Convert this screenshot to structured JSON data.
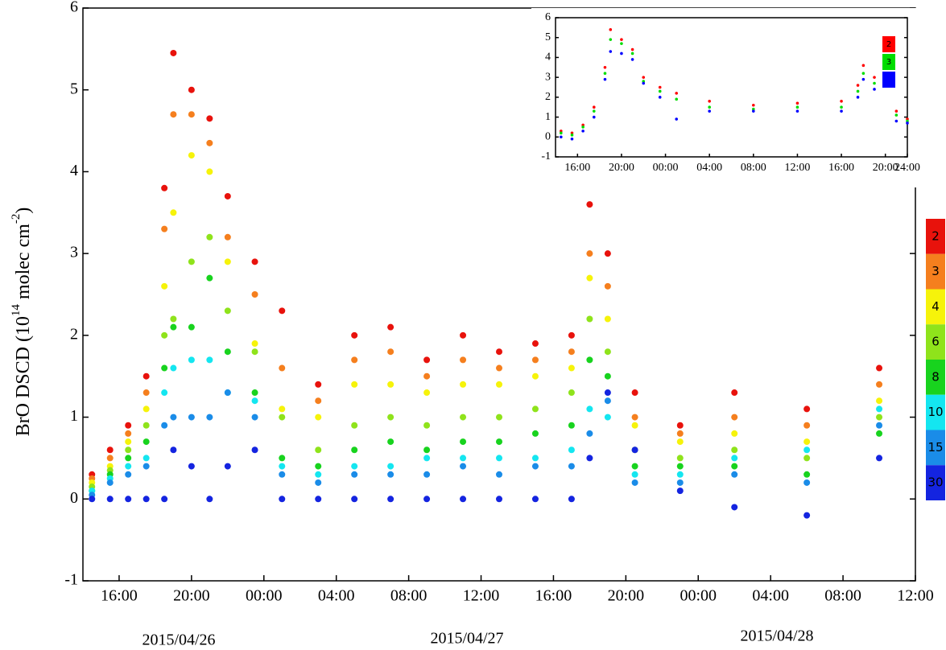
{
  "chart_data": [
    {
      "type": "scatter",
      "y_label": {
        "text": "BrO DSCD (10",
        "exp": "14",
        "unit": "molec cm",
        "unit_exp": "-2",
        "close": ")"
      },
      "date_labels": [
        "2015/04/26",
        "2015/04/27",
        "2015/04/28"
      ],
      "xlim": [
        14,
        60
      ],
      "xticks": [
        {
          "value": 16,
          "label": "16:00"
        },
        {
          "value": 20,
          "label": "20:00"
        },
        {
          "value": 24,
          "label": "00:00"
        },
        {
          "value": 28,
          "label": "04:00"
        },
        {
          "value": 32,
          "label": "08:00"
        },
        {
          "value": 36,
          "label": "12:00"
        },
        {
          "value": 40,
          "label": "16:00"
        },
        {
          "value": 44,
          "label": "20:00"
        },
        {
          "value": 48,
          "label": "00:00"
        },
        {
          "value": 52,
          "label": "04:00"
        },
        {
          "value": 56,
          "label": "08:00"
        },
        {
          "value": 60,
          "label": "12:00"
        }
      ],
      "ylim": [
        -1,
        6
      ],
      "yticks": [
        -1,
        0,
        1,
        2,
        3,
        4,
        5,
        6
      ],
      "x": [
        14.5,
        15.5,
        16.5,
        17.5,
        18.5,
        19,
        20,
        21,
        22,
        23.5,
        25,
        27,
        29,
        31,
        33,
        35,
        37,
        39,
        41,
        42,
        43,
        44.5,
        47,
        50,
        54,
        58
      ],
      "series": [
        {
          "name": "2",
          "color": "#e8120c",
          "values": [
            0.3,
            0.6,
            0.9,
            1.5,
            3.8,
            5.45,
            5.0,
            4.65,
            3.7,
            2.9,
            2.3,
            1.4,
            2.0,
            2.1,
            1.7,
            2.0,
            1.8,
            1.9,
            2.0,
            3.6,
            3.0,
            1.3,
            0.9,
            1.3,
            1.1,
            1.6
          ]
        },
        {
          "name": "3",
          "color": "#f57f1e",
          "values": [
            0.25,
            0.5,
            0.8,
            1.3,
            3.3,
            4.7,
            4.7,
            4.35,
            3.2,
            2.5,
            1.6,
            1.2,
            1.7,
            1.8,
            1.5,
            1.7,
            1.6,
            1.7,
            1.8,
            3.0,
            2.6,
            1.0,
            0.8,
            1.0,
            0.9,
            1.4
          ]
        },
        {
          "name": "4",
          "color": "#f6f30a",
          "values": [
            0.2,
            0.4,
            0.7,
            1.1,
            2.6,
            3.5,
            4.2,
            4.0,
            2.9,
            1.9,
            1.1,
            1.0,
            1.4,
            1.4,
            1.3,
            1.4,
            1.4,
            1.5,
            1.6,
            2.7,
            2.2,
            0.9,
            0.7,
            0.8,
            0.7,
            1.2
          ]
        },
        {
          "name": "6",
          "color": "#8fe31b",
          "values": [
            0.15,
            0.35,
            0.6,
            0.9,
            2.0,
            2.2,
            2.9,
            3.2,
            2.3,
            1.8,
            1.0,
            0.6,
            0.9,
            1.0,
            0.9,
            1.0,
            1.0,
            1.1,
            1.3,
            2.2,
            1.8,
            0.6,
            0.5,
            0.6,
            0.5,
            1.0
          ]
        },
        {
          "name": "8",
          "color": "#18d31e",
          "values": [
            0.1,
            0.3,
            0.5,
            0.7,
            1.6,
            2.1,
            2.1,
            2.7,
            1.8,
            1.3,
            0.5,
            0.4,
            0.6,
            0.7,
            0.6,
            0.7,
            0.7,
            0.8,
            0.9,
            1.7,
            1.5,
            0.4,
            0.4,
            0.4,
            0.3,
            0.8
          ]
        },
        {
          "name": "10",
          "color": "#14e6f0",
          "values": [
            0.1,
            0.25,
            0.4,
            0.5,
            1.3,
            1.6,
            1.7,
            1.7,
            1.3,
            1.2,
            0.4,
            0.3,
            0.4,
            0.4,
            0.5,
            0.5,
            0.5,
            0.5,
            0.6,
            1.1,
            1.0,
            0.3,
            0.3,
            0.5,
            0.6,
            1.1
          ]
        },
        {
          "name": "15",
          "color": "#1a8ce8",
          "values": [
            0.05,
            0.2,
            0.3,
            0.4,
            0.9,
            1.0,
            1.0,
            1.0,
            1.3,
            1.0,
            0.3,
            0.2,
            0.3,
            0.3,
            0.3,
            0.4,
            0.3,
            0.4,
            0.4,
            0.8,
            1.2,
            0.2,
            0.2,
            0.3,
            0.2,
            0.9
          ]
        },
        {
          "name": "30",
          "color": "#1424e0",
          "values": [
            0,
            0,
            0,
            0,
            0,
            0.6,
            0.4,
            0,
            0.4,
            0.6,
            0,
            0,
            0,
            0,
            0,
            0,
            0,
            0,
            0,
            0.5,
            1.3,
            0.6,
            0.1,
            -0.1,
            -0.2,
            0.5
          ]
        }
      ]
    },
    {
      "type": "scatter",
      "xlim": [
        14,
        46
      ],
      "xticks": [
        {
          "value": 16,
          "label": "16:00"
        },
        {
          "value": 20,
          "label": "20:00"
        },
        {
          "value": 24,
          "label": "00:00"
        },
        {
          "value": 28,
          "label": "04:00"
        },
        {
          "value": 32,
          "label": "08:00"
        },
        {
          "value": 36,
          "label": "12:00"
        },
        {
          "value": 40,
          "label": "16:00"
        },
        {
          "value": 44,
          "label": "20:00"
        },
        {
          "value": 46,
          "label": "24:00"
        }
      ],
      "ylim": [
        -1,
        6
      ],
      "yticks": [
        -1,
        0,
        1,
        2,
        3,
        4,
        5,
        6
      ],
      "x": [
        14.5,
        15.5,
        16.5,
        17.5,
        18.5,
        19,
        20,
        21,
        22,
        23.5,
        25,
        28,
        32,
        36,
        40,
        41.5,
        42,
        43,
        45,
        46
      ],
      "series": [
        {
          "name": "2",
          "color": "#ff0000",
          "values": [
            0.3,
            0.2,
            0.6,
            1.5,
            3.5,
            5.4,
            4.9,
            4.4,
            3.0,
            2.5,
            2.2,
            1.8,
            1.6,
            1.7,
            1.8,
            2.6,
            3.6,
            3.0,
            1.3,
            0.9
          ]
        },
        {
          "name": "3",
          "color": "#00dd00",
          "values": [
            0.2,
            0.1,
            0.5,
            1.3,
            3.2,
            4.9,
            4.7,
            4.2,
            2.8,
            2.3,
            1.9,
            1.5,
            1.4,
            1.5,
            1.5,
            2.3,
            3.2,
            2.7,
            1.1,
            0.8
          ]
        },
        {
          "color": "#0000ff",
          "values": [
            0.0,
            -0.1,
            0.3,
            1.0,
            2.9,
            4.3,
            4.2,
            3.9,
            2.7,
            2.0,
            0.9,
            1.3,
            1.3,
            1.3,
            1.3,
            2.0,
            2.9,
            2.4,
            0.8,
            0.7
          ]
        }
      ]
    }
  ]
}
